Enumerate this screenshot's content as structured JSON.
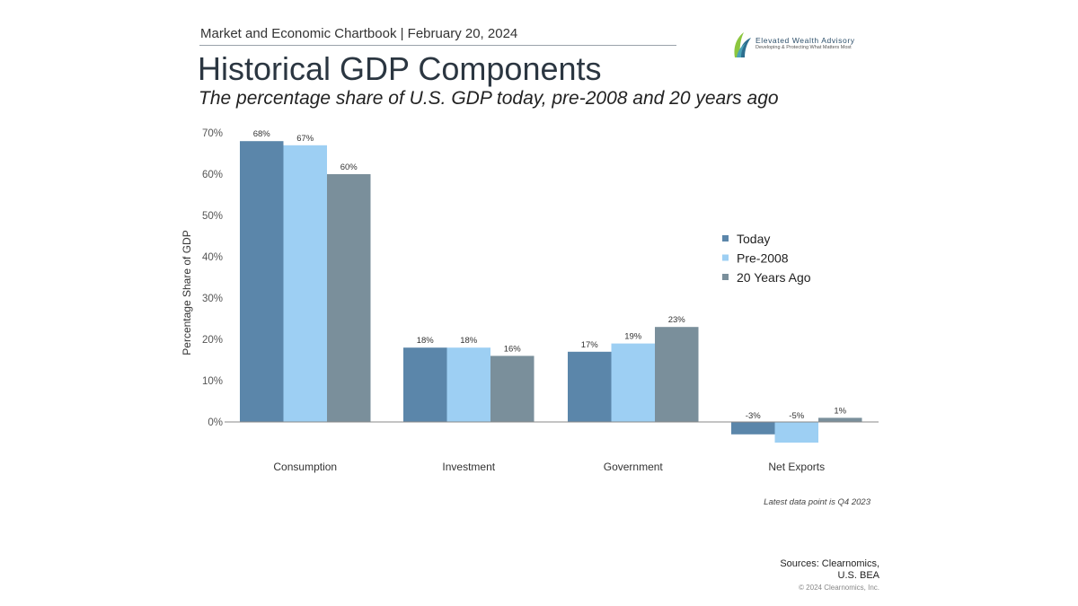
{
  "header": {
    "chartbook": "Market and Economic Chartbook | February 20, 2024",
    "logo_name": "Elevated Wealth Advisory",
    "logo_tagline": "Developing & Protecting What Matters Most"
  },
  "title": "Historical GDP Components",
  "subtitle": "The percentage share of U.S. GDP today, pre-2008 and 20 years ago",
  "note": "Latest data point is Q4 2023",
  "sources": {
    "line1": "Sources: Clearnomics,",
    "line2": "U.S. BEA"
  },
  "copyright": "© 2024 Clearnomics, Inc.",
  "chart_data": {
    "type": "bar",
    "categories": [
      "Consumption",
      "Investment",
      "Government",
      "Net Exports"
    ],
    "series": [
      {
        "name": "Today",
        "color": "#5b86aa",
        "values": [
          68,
          18,
          17,
          -3
        ],
        "labels": [
          "68%",
          "18%",
          "17%",
          "-3%"
        ]
      },
      {
        "name": "Pre-2008",
        "color": "#9dcff3",
        "values": [
          67,
          18,
          19,
          -5
        ],
        "labels": [
          "67%",
          "18%",
          "19%",
          "-5%"
        ]
      },
      {
        "name": "20 Years Ago",
        "color": "#7a8f9b",
        "values": [
          60,
          16,
          23,
          1
        ],
        "labels": [
          "60%",
          "16%",
          "23%",
          "1%"
        ]
      }
    ],
    "ylabel": "Percentage Share of GDP",
    "ylim": [
      -5,
      70
    ],
    "yticks": [
      0,
      10,
      20,
      30,
      40,
      50,
      60,
      70
    ],
    "ytick_labels": [
      "0%",
      "10%",
      "20%",
      "30%",
      "40%",
      "50%",
      "60%",
      "70%"
    ],
    "grid": false,
    "legend_position": "right"
  }
}
